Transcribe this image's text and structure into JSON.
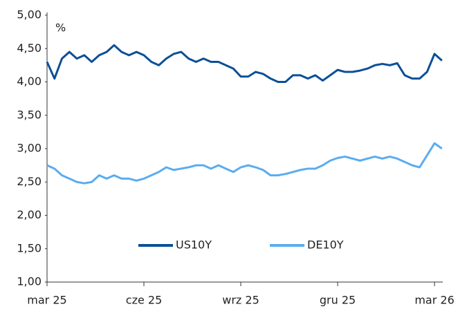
{
  "chart_data": {
    "type": "line",
    "y_label": "%",
    "categories": [
      "mar 25",
      null,
      null,
      null,
      null,
      null,
      null,
      null,
      null,
      null,
      null,
      null,
      null,
      "cze 25",
      null,
      null,
      null,
      null,
      null,
      null,
      null,
      null,
      null,
      null,
      null,
      null,
      "wrz 25",
      null,
      null,
      null,
      null,
      null,
      null,
      null,
      null,
      null,
      null,
      null,
      null,
      "gru 25",
      null,
      null,
      null,
      null,
      null,
      null,
      null,
      null,
      null,
      null,
      null,
      null,
      "mar 26",
      null
    ],
    "series": [
      {
        "name": "US10Y",
        "color": "#0b4f97",
        "values": [
          4.3,
          4.05,
          4.35,
          4.45,
          4.35,
          4.4,
          4.3,
          4.4,
          4.45,
          4.55,
          4.45,
          4.4,
          4.45,
          4.4,
          4.3,
          4.25,
          4.35,
          4.42,
          4.45,
          4.35,
          4.3,
          4.35,
          4.3,
          4.3,
          4.25,
          4.2,
          4.08,
          4.08,
          4.15,
          4.12,
          4.05,
          4.0,
          4.0,
          4.1,
          4.1,
          4.05,
          4.1,
          4.02,
          4.1,
          4.18,
          4.15,
          4.15,
          4.17,
          4.2,
          4.25,
          4.27,
          4.25,
          4.28,
          4.1,
          4.05,
          4.05,
          4.15,
          4.42,
          4.32
        ]
      },
      {
        "name": "DE10Y",
        "color": "#5aacf0",
        "values": [
          2.75,
          2.7,
          2.6,
          2.55,
          2.5,
          2.48,
          2.5,
          2.6,
          2.55,
          2.6,
          2.55,
          2.55,
          2.52,
          2.55,
          2.6,
          2.65,
          2.72,
          2.68,
          2.7,
          2.72,
          2.75,
          2.75,
          2.7,
          2.75,
          2.7,
          2.65,
          2.72,
          2.75,
          2.72,
          2.68,
          2.6,
          2.6,
          2.62,
          2.65,
          2.68,
          2.7,
          2.7,
          2.75,
          2.82,
          2.86,
          2.88,
          2.85,
          2.82,
          2.85,
          2.88,
          2.85,
          2.88,
          2.85,
          2.8,
          2.75,
          2.72,
          2.9,
          3.08,
          3.0
        ]
      }
    ],
    "ylim": [
      1,
      5
    ],
    "yticks": [
      {
        "value": 1,
        "label": "1,00"
      },
      {
        "value": 1.5,
        "label": "1,50"
      },
      {
        "value": 2,
        "label": "2,00"
      },
      {
        "value": 2.5,
        "label": "2,50"
      },
      {
        "value": 3,
        "label": "3,00"
      },
      {
        "value": 3.5,
        "label": "3,50"
      },
      {
        "value": 4,
        "label": "4,00"
      },
      {
        "value": 4.5,
        "label": "4,50"
      },
      {
        "value": 5,
        "label": "5,00"
      }
    ],
    "grid": false,
    "legend": "bottom"
  }
}
